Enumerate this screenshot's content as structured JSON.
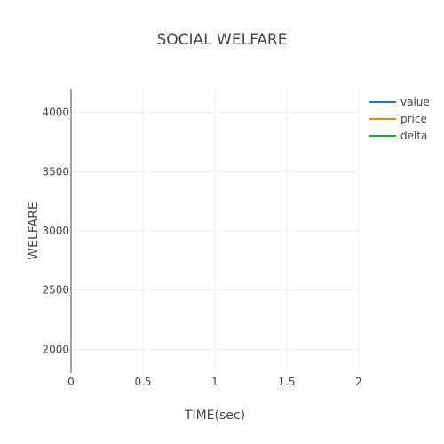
{
  "chart_data": {
    "type": "line",
    "title": "SOCIAL WELFARE",
    "xlabel": "TIME(sec)",
    "ylabel": "WELFARE",
    "xlim": [
      0,
      2
    ],
    "ylim": [
      1800,
      4200
    ],
    "x_ticks": [
      0,
      0.5,
      1,
      1.5,
      2
    ],
    "x_tick_labels": [
      "0",
      "0.5",
      "1",
      "1.5",
      "2"
    ],
    "y_ticks": [
      2000,
      2500,
      3000,
      3500,
      4000
    ],
    "y_tick_labels": [
      "2000",
      "2500",
      "3000",
      "3500",
      "4000"
    ],
    "grid": true,
    "legend_position": "top-right",
    "series": [
      {
        "name": "value",
        "color": "#1f77b4",
        "x": [],
        "y": []
      },
      {
        "name": "price",
        "color": "#ff7f0e",
        "x": [],
        "y": []
      },
      {
        "name": "delta",
        "color": "#2ca02c",
        "x": [],
        "y": []
      }
    ]
  }
}
